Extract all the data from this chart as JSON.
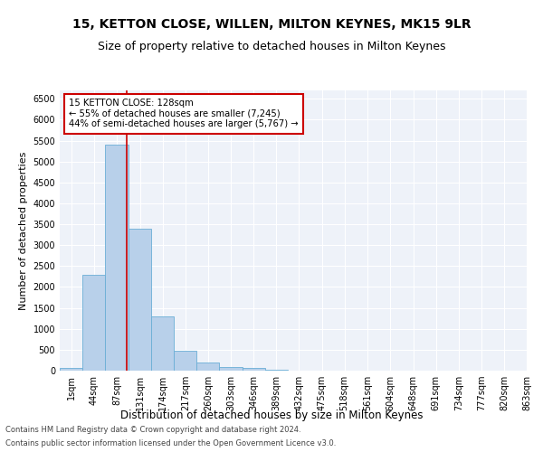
{
  "title": "15, KETTON CLOSE, WILLEN, MILTON KEYNES, MK15 9LR",
  "subtitle": "Size of property relative to detached houses in Milton Keynes",
  "xlabel": "Distribution of detached houses by size in Milton Keynes",
  "ylabel": "Number of detached properties",
  "bar_color": "#b8d0ea",
  "bar_edge_color": "#6aaed6",
  "vline_x": 128,
  "vline_color": "#cc0000",
  "annotation_title": "15 KETTON CLOSE: 128sqm",
  "annotation_line2": "← 55% of detached houses are smaller (7,245)",
  "annotation_line3": "44% of semi-detached houses are larger (5,767) →",
  "footer_line1": "Contains HM Land Registry data © Crown copyright and database right 2024.",
  "footer_line2": "Contains public sector information licensed under the Open Government Licence v3.0.",
  "bin_edges": [
    1,
    44,
    87,
    131,
    174,
    217,
    260,
    303,
    346,
    389,
    432,
    475,
    518,
    561,
    604,
    648,
    691,
    734,
    777,
    820,
    863
  ],
  "bin_labels": [
    "1sqm",
    "44sqm",
    "87sqm",
    "131sqm",
    "174sqm",
    "217sqm",
    "260sqm",
    "303sqm",
    "346sqm",
    "389sqm",
    "432sqm",
    "475sqm",
    "518sqm",
    "561sqm",
    "604sqm",
    "648sqm",
    "691sqm",
    "734sqm",
    "777sqm",
    "820sqm",
    "863sqm"
  ],
  "bar_heights": [
    75,
    2300,
    5400,
    3400,
    1300,
    480,
    200,
    90,
    60,
    30,
    10,
    5,
    2,
    1,
    0,
    0,
    0,
    0,
    0,
    0
  ],
  "ylim": [
    0,
    6700
  ],
  "yticks": [
    0,
    500,
    1000,
    1500,
    2000,
    2500,
    3000,
    3500,
    4000,
    4500,
    5000,
    5500,
    6000,
    6500
  ],
  "background_color": "#eef2f9",
  "grid_color": "#ffffff",
  "title_fontsize": 10,
  "subtitle_fontsize": 9,
  "ylabel_fontsize": 8,
  "xlabel_fontsize": 8.5,
  "tick_fontsize": 7,
  "footer_fontsize": 6
}
